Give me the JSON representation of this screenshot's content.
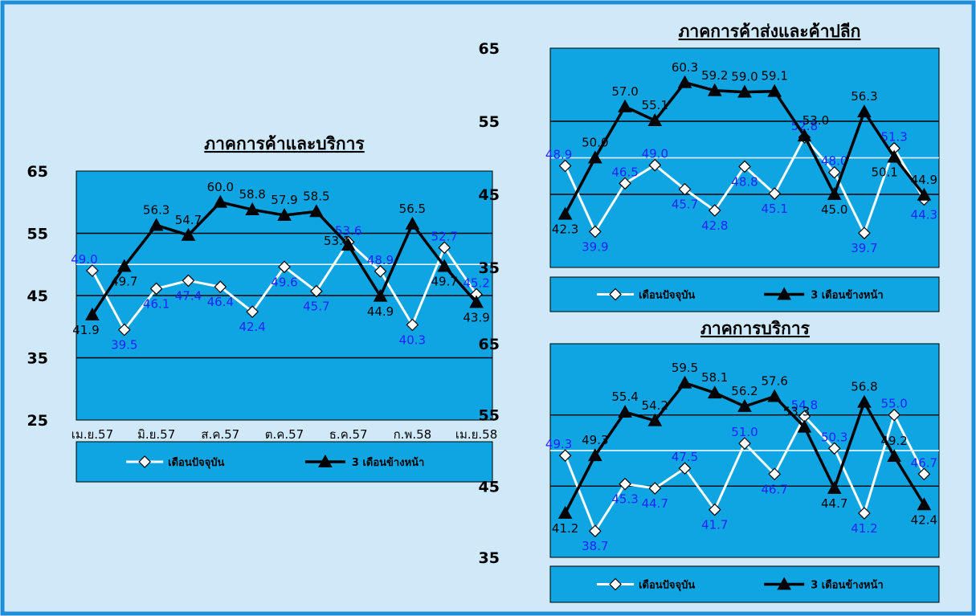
{
  "colors": {
    "frame_bg": "#cfe9f8",
    "frame_border": "#1f8ed8",
    "plot_bg": "#0ea5e2",
    "current_line": "#ffffff",
    "forward_line": "#000000",
    "current_label": "#2222ff",
    "forward_label": "#000000"
  },
  "chart_data": [
    {
      "type": "line",
      "title": "ภาคการค้าและบริการ",
      "ylim": [
        25,
        65
      ],
      "yticks": [
        25,
        35,
        45,
        55,
        65
      ],
      "reference_line": 50,
      "x_tick_labels": [
        "เม.ย.57",
        "มิ.ย.57",
        "ส.ค.57",
        "ต.ค.57",
        "ธ.ค.57",
        "ก.พ.58",
        "เม.ย.58"
      ],
      "grid": true,
      "legend_position": "bottom",
      "series": [
        {
          "name": "เดือนปัจจุบัน",
          "marker": "diamond",
          "values": [
            49.0,
            39.5,
            46.1,
            47.4,
            46.4,
            42.4,
            49.6,
            45.7,
            53.6,
            48.9,
            40.3,
            52.7,
            45.2
          ]
        },
        {
          "name": "3 เดือนข้างหน้า",
          "marker": "triangle",
          "values": [
            41.9,
            49.7,
            56.3,
            54.7,
            60.0,
            58.8,
            57.9,
            58.5,
            53.1,
            44.9,
            56.5,
            49.7,
            43.9
          ]
        }
      ]
    },
    {
      "type": "line",
      "title": "ภาคการค้าส่งและค้าปลีก",
      "ylim": [
        35,
        65
      ],
      "yticks": [
        35,
        45,
        55,
        65
      ],
      "reference_line": 50,
      "grid": true,
      "legend_position": "bottom",
      "series": [
        {
          "name": "เดือนปัจจุบัน",
          "marker": "diamond",
          "values": [
            48.9,
            39.9,
            46.5,
            49.0,
            45.7,
            42.8,
            48.8,
            45.1,
            52.8,
            48.0,
            39.7,
            51.3,
            44.3
          ]
        },
        {
          "name": "3 เดือนข้างหน้า",
          "marker": "triangle",
          "values": [
            42.3,
            50.0,
            57.0,
            55.1,
            60.3,
            59.2,
            59.0,
            59.1,
            53.0,
            45.0,
            56.3,
            50.1,
            44.9
          ]
        }
      ]
    },
    {
      "type": "line",
      "title": "ภาคการบริการ",
      "ylim": [
        35,
        65
      ],
      "yticks": [
        35,
        45,
        55,
        65
      ],
      "reference_line": 50,
      "grid": true,
      "legend_position": "bottom",
      "series": [
        {
          "name": "เดือนปัจจุบัน",
          "marker": "diamond",
          "values": [
            49.3,
            38.7,
            45.3,
            44.7,
            47.5,
            41.7,
            51.0,
            46.7,
            54.8,
            50.3,
            41.2,
            55.0,
            46.7
          ]
        },
        {
          "name": "3 เดือนข้างหน้า",
          "marker": "triangle",
          "values": [
            41.2,
            49.3,
            55.4,
            54.2,
            59.5,
            58.1,
            56.2,
            57.6,
            53.3,
            44.7,
            56.8,
            49.2,
            42.4
          ]
        }
      ]
    }
  ]
}
